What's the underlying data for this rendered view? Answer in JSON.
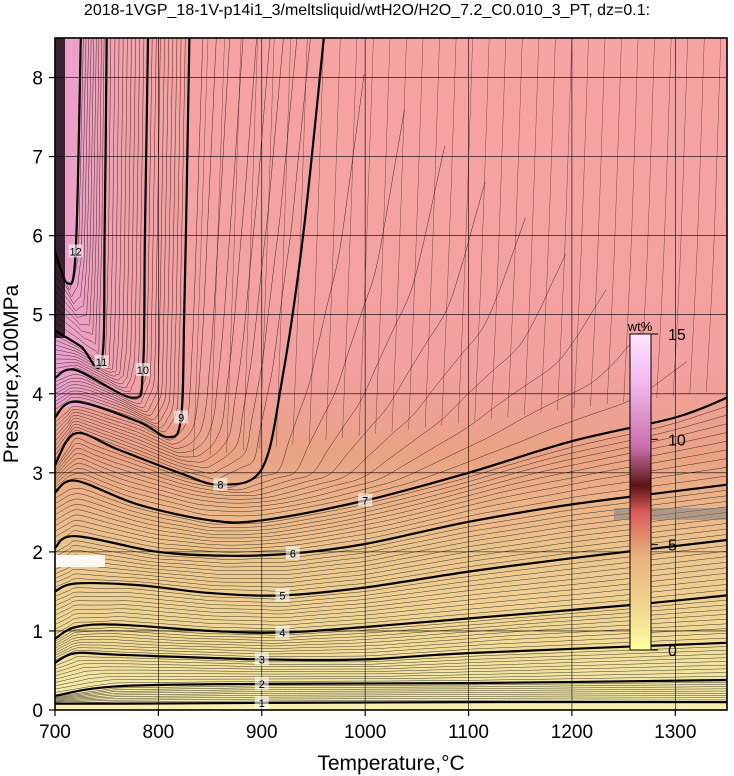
{
  "chart_data": {
    "type": "heatmap",
    "title": "2018-1VGP_18-1V-p14i1_3/meltsliquid/wtH2O/H2O_7.2_C0.010_3_PT, dz=0.1:",
    "xlabel": "Temperature,°C",
    "ylabel": "Pressure,x100MPa",
    "xlim": [
      700,
      1350
    ],
    "ylim": [
      0,
      8.5
    ],
    "x_ticks": [
      700,
      800,
      900,
      1000,
      1100,
      1200,
      1300
    ],
    "y_ticks": [
      0,
      1,
      2,
      3,
      4,
      5,
      6,
      7,
      8
    ],
    "grid": true,
    "colorbar": {
      "label": "wt%",
      "range": [
        0,
        15
      ],
      "ticks": [
        0,
        5,
        10,
        15
      ],
      "colors": [
        "#ffffa0",
        "#f2d58e",
        "#e8b080",
        "#d85858",
        "#5a1414",
        "#c86ea8",
        "#f2b8ee",
        "#ffe4ff"
      ]
    },
    "contours": [
      {
        "level": 1,
        "label": "1",
        "points": [
          [
            700,
            0.08
          ],
          [
            760,
            0.08
          ],
          [
            900,
            0.09
          ],
          [
            1100,
            0.1
          ],
          [
            1350,
            0.1
          ]
        ]
      },
      {
        "level": 2,
        "label": "2",
        "points": [
          [
            700,
            0.18
          ],
          [
            760,
            0.3
          ],
          [
            900,
            0.33
          ],
          [
            1100,
            0.34
          ],
          [
            1350,
            0.38
          ]
        ]
      },
      {
        "level": 3,
        "label": "3",
        "points": [
          [
            700,
            0.6
          ],
          [
            720,
            0.72
          ],
          [
            760,
            0.7
          ],
          [
            900,
            0.64
          ],
          [
            1000,
            0.64
          ],
          [
            1100,
            0.72
          ],
          [
            1350,
            0.85
          ]
        ]
      },
      {
        "level": 4,
        "label": "4",
        "points": [
          [
            700,
            0.9
          ],
          [
            720,
            1.05
          ],
          [
            760,
            1.08
          ],
          [
            850,
            1.0
          ],
          [
            920,
            0.98
          ],
          [
            1000,
            1.05
          ],
          [
            1120,
            1.18
          ],
          [
            1250,
            1.32
          ],
          [
            1350,
            1.45
          ]
        ]
      },
      {
        "level": 5,
        "label": "5",
        "points": [
          [
            700,
            1.5
          ],
          [
            720,
            1.6
          ],
          [
            780,
            1.58
          ],
          [
            850,
            1.48
          ],
          [
            920,
            1.45
          ],
          [
            1000,
            1.55
          ],
          [
            1100,
            1.75
          ],
          [
            1200,
            1.92
          ],
          [
            1350,
            2.15
          ]
        ]
      },
      {
        "level": 6,
        "label": "6",
        "points": [
          [
            700,
            2.05
          ],
          [
            720,
            2.2
          ],
          [
            800,
            2.0
          ],
          [
            870,
            1.95
          ],
          [
            930,
            1.98
          ],
          [
            1000,
            2.1
          ],
          [
            1100,
            2.38
          ],
          [
            1200,
            2.6
          ],
          [
            1350,
            2.85
          ]
        ]
      },
      {
        "level": 7,
        "label": "7",
        "points": [
          [
            700,
            2.75
          ],
          [
            720,
            2.9
          ],
          [
            780,
            2.6
          ],
          [
            850,
            2.4
          ],
          [
            900,
            2.4
          ],
          [
            1000,
            2.65
          ],
          [
            1100,
            3.0
          ],
          [
            1200,
            3.4
          ],
          [
            1300,
            3.7
          ],
          [
            1350,
            3.95
          ]
        ]
      },
      {
        "level": 8,
        "label": "8",
        "points": [
          [
            700,
            3.1
          ],
          [
            720,
            3.5
          ],
          [
            760,
            3.3
          ],
          [
            820,
            3.0
          ],
          [
            860,
            2.85
          ],
          [
            900,
            3.05
          ],
          [
            920,
            4.2
          ],
          [
            940,
            6.0
          ],
          [
            960,
            8.5
          ]
        ]
      },
      {
        "level": 9,
        "label": "9",
        "points": [
          [
            700,
            3.7
          ],
          [
            720,
            3.9
          ],
          [
            780,
            3.65
          ],
          [
            810,
            3.45
          ],
          [
            822,
            3.7
          ],
          [
            825,
            5.0
          ],
          [
            828,
            7.0
          ],
          [
            830,
            8.5
          ]
        ]
      },
      {
        "level": 10,
        "label": "10",
        "points": [
          [
            700,
            4.2
          ],
          [
            720,
            4.3
          ],
          [
            775,
            3.95
          ],
          [
            785,
            4.3
          ],
          [
            787,
            6.0
          ],
          [
            790,
            8.5
          ]
        ]
      },
      {
        "level": 11,
        "label": "11",
        "points": [
          [
            700,
            4.8
          ],
          [
            725,
            4.6
          ],
          [
            745,
            4.4
          ],
          [
            748,
            6.0
          ],
          [
            750,
            8.5
          ]
        ]
      },
      {
        "level": 12,
        "label": "12",
        "points": [
          [
            700,
            5.8
          ],
          [
            712,
            5.4
          ],
          [
            720,
            5.8
          ],
          [
            725,
            8.5
          ]
        ]
      }
    ]
  }
}
